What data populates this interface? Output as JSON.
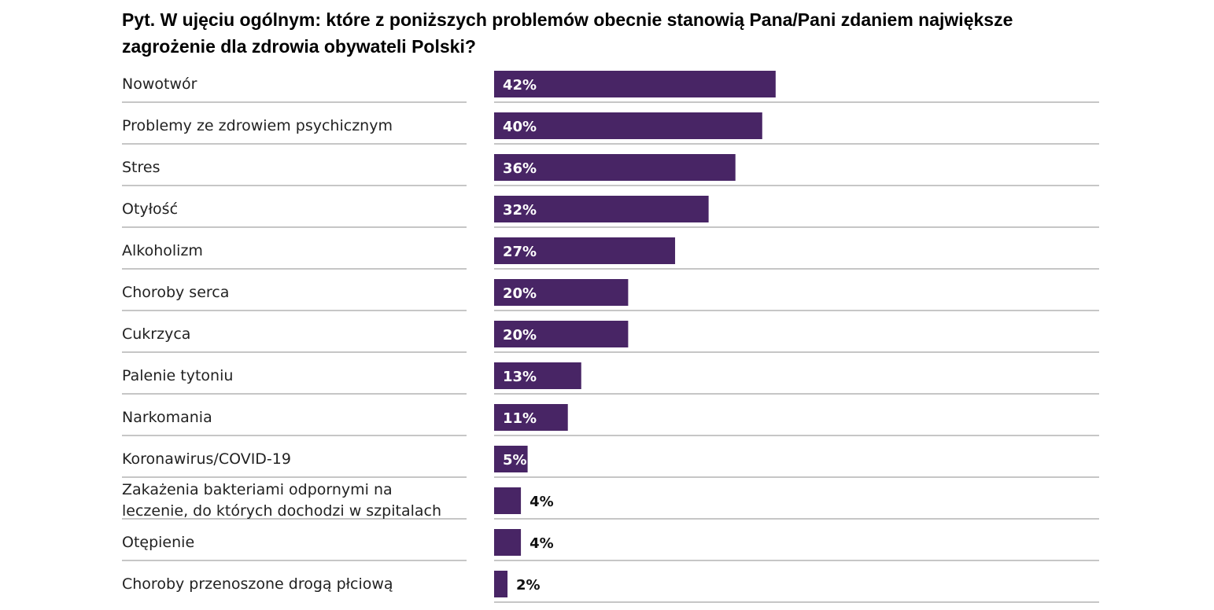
{
  "chart_data": {
    "type": "bar",
    "orientation": "horizontal",
    "title": "Pyt. W ujęciu ogólnym: które z poniższych problemów obecnie stanowią Pana/Pani zdaniem największe zagrożenie dla zdrowia obywateli Polski?",
    "categories": [
      "Nowotwór",
      "Problemy ze zdrowiem psychicznym",
      "Stres",
      "Otyłość",
      "Alkoholizm",
      "Choroby serca",
      "Cukrzyca",
      "Palenie tytoniu",
      "Narkomania",
      "Koronawirus/COVID-19",
      "Zakażenia bakteriami odpornymi na leczenie, do których dochodzi w szpitalach",
      "Otępienie",
      "Choroby przenoszone drogą płciową"
    ],
    "category_lines": [
      [
        "Nowotwór"
      ],
      [
        "Problemy ze zdrowiem psychicznym"
      ],
      [
        "Stres"
      ],
      [
        "Otyłość"
      ],
      [
        "Alkoholizm"
      ],
      [
        "Choroby serca"
      ],
      [
        "Cukrzyca"
      ],
      [
        "Palenie tytoniu"
      ],
      [
        "Narkomania"
      ],
      [
        "Koronawirus/COVID-19"
      ],
      [
        "Zakażenia bakteriami odpornymi na",
        "leczenie, do których dochodzi w szpitalach"
      ],
      [
        "Otępienie"
      ],
      [
        "Choroby przenoszone drogą płciową"
      ]
    ],
    "values": [
      42,
      40,
      36,
      32,
      27,
      20,
      20,
      13,
      11,
      5,
      4,
      4,
      2
    ],
    "value_labels": [
      "42%",
      "40%",
      "36%",
      "32%",
      "27%",
      "20%",
      "20%",
      "13%",
      "11%",
      "5%",
      "4%",
      "4%",
      "2%"
    ],
    "unit": "%",
    "xlim": [
      0,
      100
    ],
    "grid": false,
    "legend": "none",
    "colors": {
      "bar": "#482565",
      "separator": "#8c8c8c",
      "label_inside": "#ffffff",
      "label_outside": "#111111"
    }
  }
}
